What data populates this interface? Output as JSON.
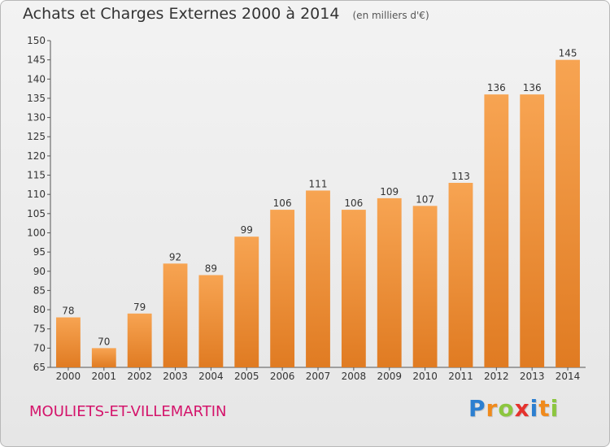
{
  "header": {
    "title": "Achats et Charges Externes 2000 à 2014",
    "unit": "(en milliers d'€)"
  },
  "footer": {
    "commune": "MOULIETS-ET-VILLEMARTIN",
    "logo_letters": [
      "P",
      "r",
      "o",
      "x",
      "i",
      "t",
      "i"
    ],
    "logo_colors": [
      "#2c7fd0",
      "#f08a1c",
      "#8cc63f",
      "#e5322d",
      "#2c7fd0",
      "#f08a1c",
      "#8cc63f"
    ]
  },
  "chart_data": {
    "type": "bar",
    "title": "Achats et Charges Externes 2000 à 2014",
    "subtitle": "(en milliers d'€)",
    "categories": [
      "2000",
      "2001",
      "2002",
      "2003",
      "2004",
      "2005",
      "2006",
      "2007",
      "2008",
      "2009",
      "2010",
      "2011",
      "2012",
      "2013",
      "2014"
    ],
    "values": [
      78,
      70,
      79,
      92,
      89,
      99,
      106,
      111,
      106,
      109,
      107,
      113,
      136,
      136,
      145
    ],
    "ylim": [
      65,
      150
    ],
    "yticks": [
      65,
      70,
      75,
      80,
      85,
      90,
      95,
      100,
      105,
      110,
      115,
      120,
      125,
      130,
      135,
      140,
      145,
      150
    ],
    "grid": false,
    "bar_color_top": "#f7a452",
    "bar_color_bottom": "#e07b22"
  }
}
